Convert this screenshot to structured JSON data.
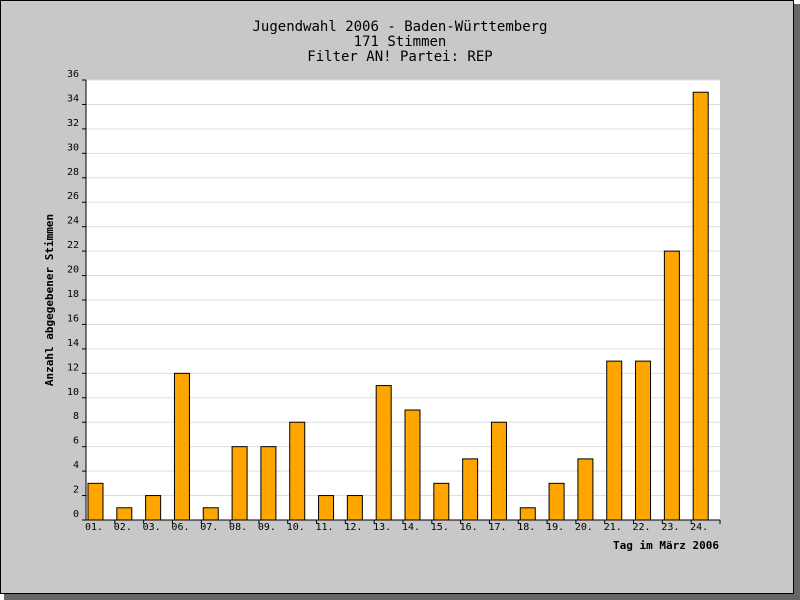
{
  "chart_data": {
    "type": "bar",
    "title": [
      "Jugendwahl 2006 - Baden-Württemberg",
      "171 Stimmen",
      "Filter AN! Partei: REP"
    ],
    "x_label": "Tag im März 2006",
    "y_label": "Anzahl abgegebener Stimmen",
    "categories": [
      "01.",
      "02.",
      "03.",
      "06.",
      "07.",
      "08.",
      "09.",
      "10.",
      "11.",
      "12.",
      "13.",
      "14.",
      "15.",
      "16.",
      "17.",
      "18.",
      "19.",
      "20.",
      "21.",
      "22.",
      "23.",
      "24."
    ],
    "values": [
      3,
      1,
      2,
      12,
      1,
      6,
      6,
      8,
      2,
      2,
      11,
      9,
      3,
      5,
      8,
      1,
      3,
      5,
      13,
      13,
      22,
      35
    ],
    "color": "#ffa500",
    "ylim": [
      0,
      36
    ],
    "yticks": [
      0,
      2,
      4,
      6,
      8,
      10,
      12,
      14,
      16,
      18,
      20,
      22,
      24,
      26,
      28,
      30,
      32,
      34,
      36
    ],
    "grid": true
  }
}
